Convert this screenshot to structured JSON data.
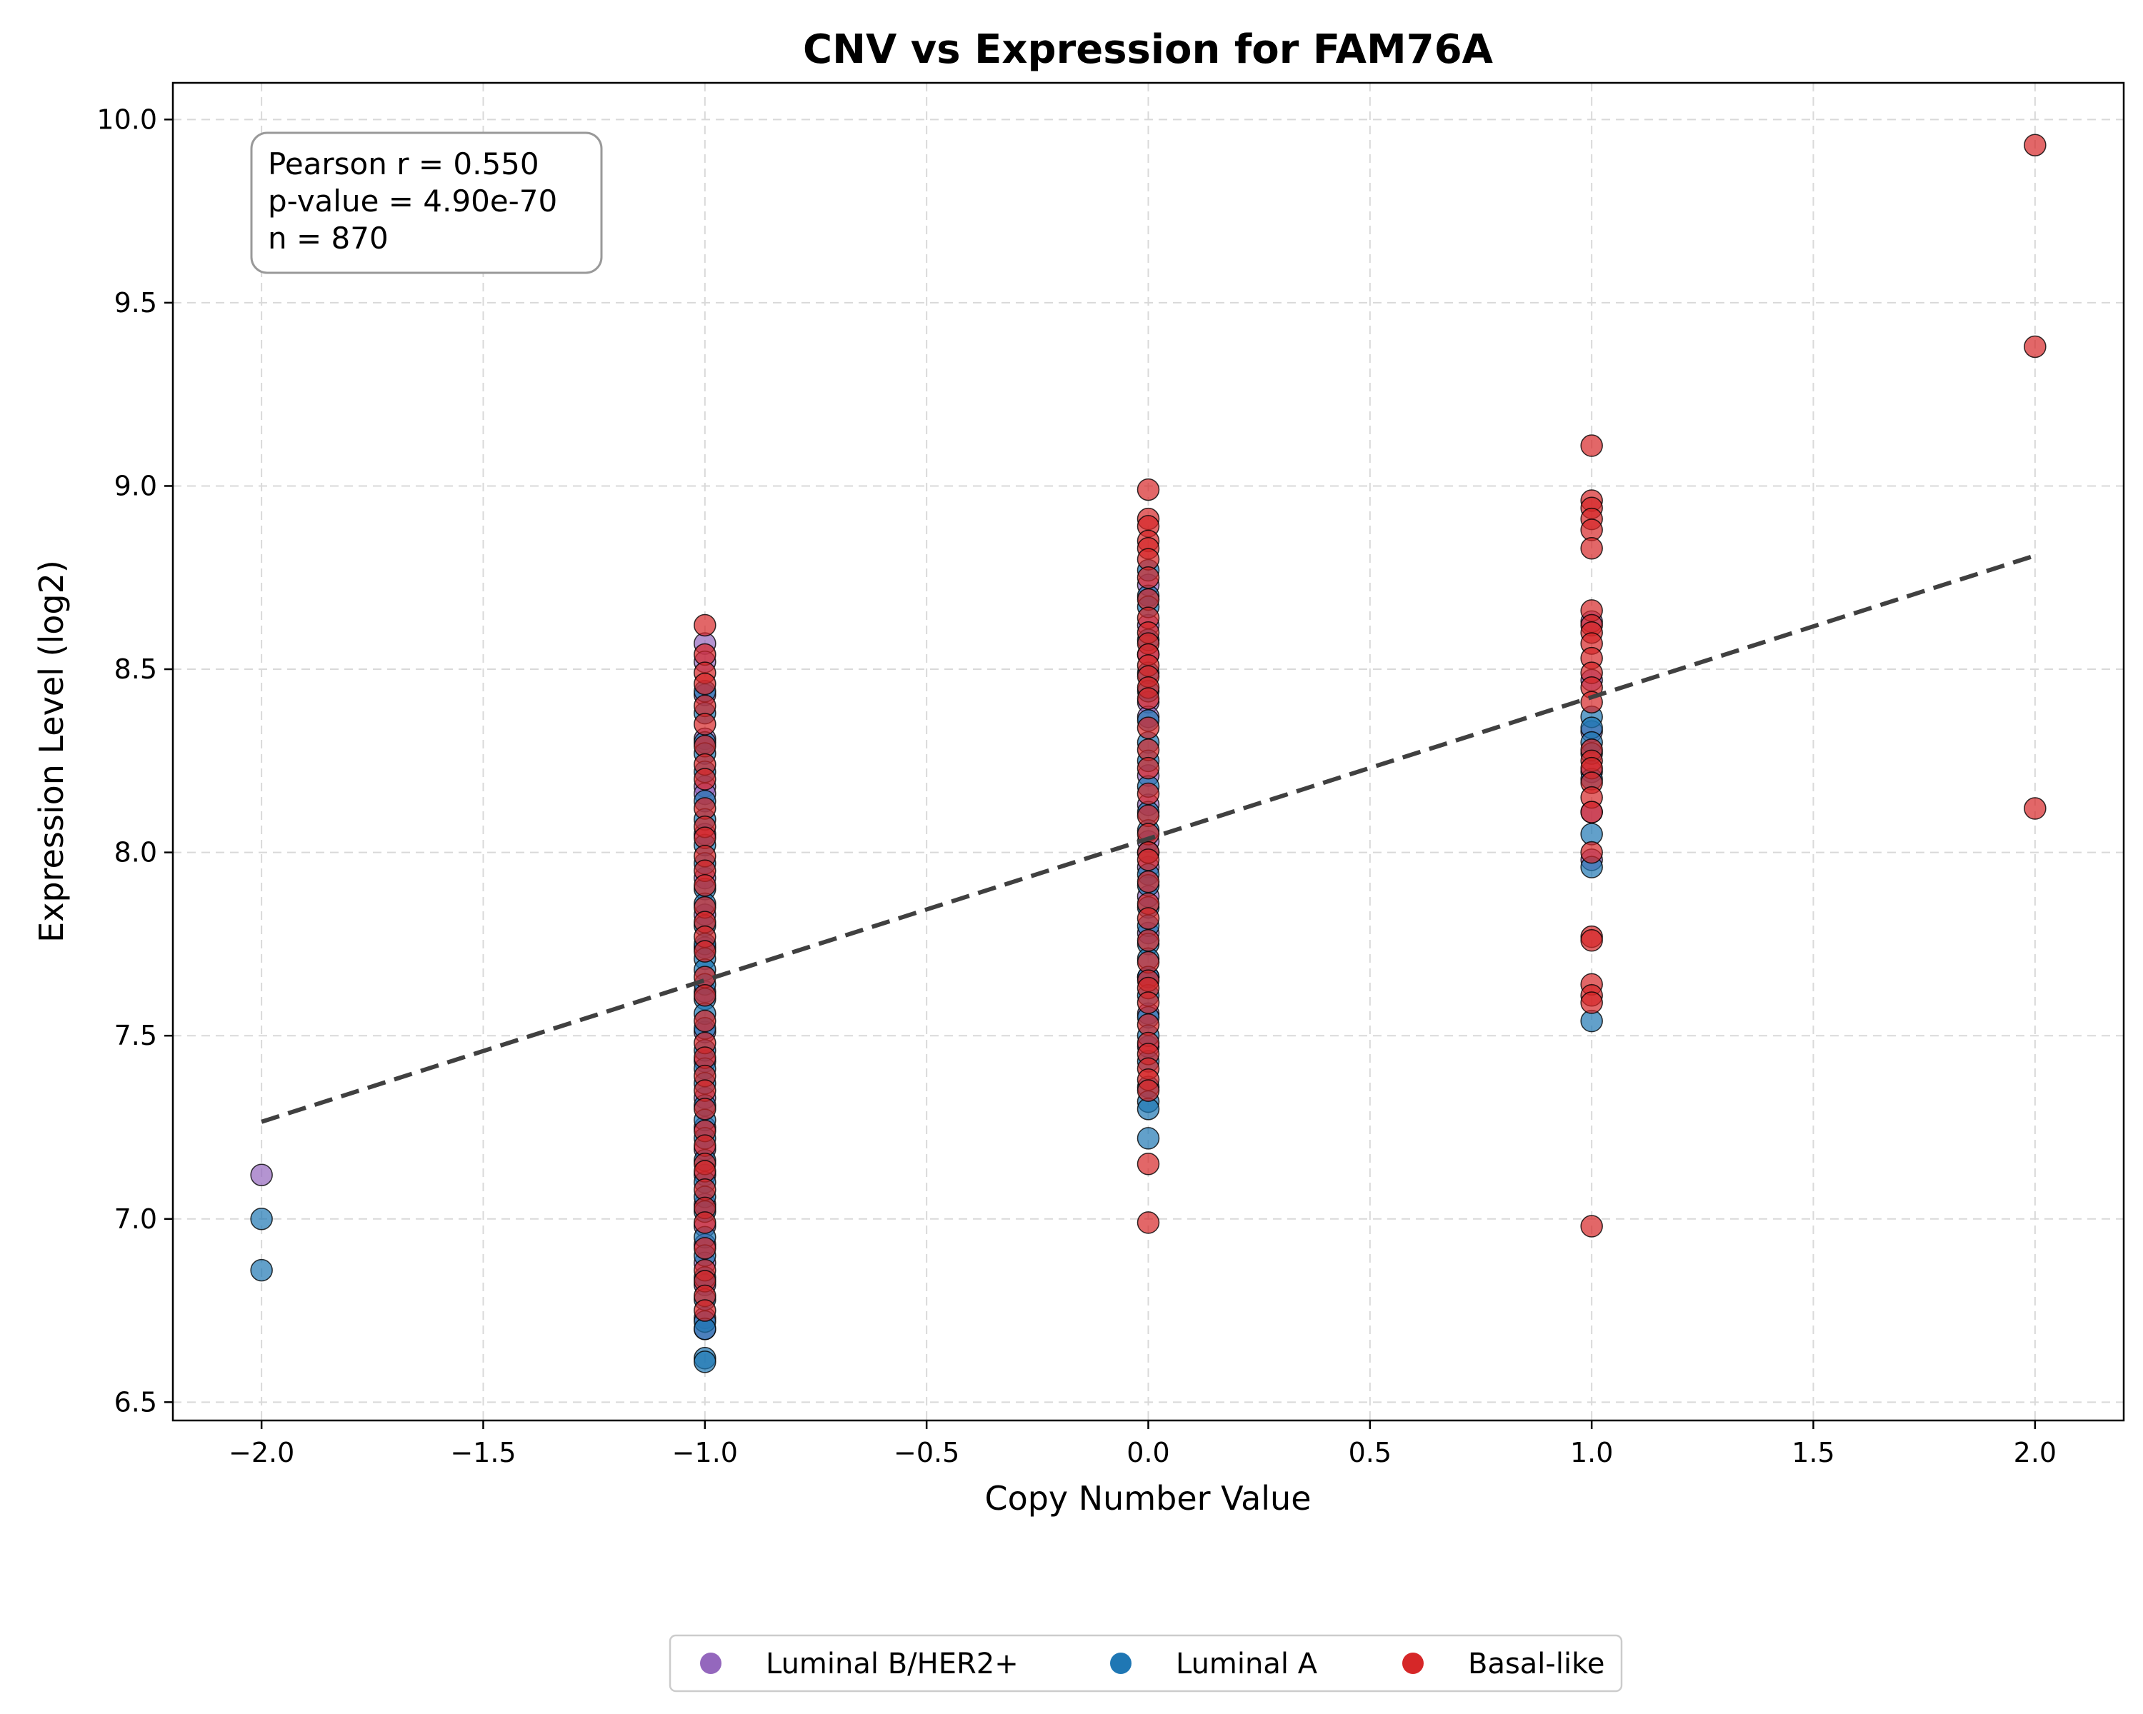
{
  "chart_data": {
    "type": "scatter",
    "title": "CNV vs Expression for FAM76A",
    "xlabel": "Copy Number Value",
    "ylabel": "Expression Level (log2)",
    "xlim": [
      -2.2,
      2.2
    ],
    "ylim": [
      6.45,
      10.1
    ],
    "xticks": [
      -2.0,
      -1.5,
      -1.0,
      -0.5,
      0.0,
      0.5,
      1.0,
      1.5,
      2.0
    ],
    "xtick_labels": [
      "−2.0",
      "−1.5",
      "−1.0",
      "−0.5",
      "0.0",
      "0.5",
      "1.0",
      "1.5",
      "2.0"
    ],
    "yticks": [
      6.5,
      7.0,
      7.5,
      8.0,
      8.5,
      9.0,
      9.5,
      10.0
    ],
    "ytick_labels": [
      "6.5",
      "7.0",
      "7.5",
      "8.0",
      "8.5",
      "9.0",
      "9.5",
      "10.0"
    ],
    "grid": true,
    "legend_position": "bottom-center",
    "stats": {
      "line1": "Pearson r = 0.550",
      "line2": "p-value = 4.90e-70",
      "line3": "n = 870"
    },
    "trend_line": {
      "x": [
        -2.0,
        2.0
      ],
      "y": [
        7.265,
        8.81
      ],
      "color": "#404040",
      "style": "dashed"
    },
    "series": [
      {
        "name": "Luminal B/HER2+",
        "color": "#9467bd",
        "points": [
          [
            -2,
            7.12
          ],
          [
            -1,
            8.57
          ],
          [
            -1,
            8.52
          ],
          [
            -1,
            8.43
          ],
          [
            -1,
            8.31
          ],
          [
            -1,
            8.18
          ],
          [
            -1,
            8.16
          ],
          [
            -1,
            8.05
          ],
          [
            -1,
            7.93
          ],
          [
            -1,
            7.83
          ],
          [
            -1,
            7.74
          ],
          [
            -1,
            7.62
          ],
          [
            -1,
            7.51
          ],
          [
            -1,
            7.43
          ],
          [
            -1,
            7.33
          ],
          [
            -1,
            7.25
          ],
          [
            -1,
            7.19
          ],
          [
            -1,
            7.12
          ],
          [
            -1,
            7.04
          ],
          [
            -1,
            6.98
          ],
          [
            -1,
            6.93
          ],
          [
            -1,
            6.88
          ],
          [
            -1,
            6.82
          ],
          [
            -1,
            6.73
          ],
          [
            -1,
            6.7
          ],
          [
            0,
            8.73
          ],
          [
            0,
            8.62
          ],
          [
            0,
            8.54
          ],
          [
            0,
            8.41
          ],
          [
            0,
            8.37
          ],
          [
            0,
            8.21
          ],
          [
            0,
            8.13
          ],
          [
            0,
            8.03
          ],
          [
            0,
            7.96
          ],
          [
            0,
            7.88
          ],
          [
            0,
            7.78
          ],
          [
            0,
            7.66
          ],
          [
            0,
            7.56
          ],
          [
            0,
            7.47
          ],
          [
            1,
            8.63
          ],
          [
            1,
            8.47
          ],
          [
            1,
            8.33
          ],
          [
            1,
            8.22
          ],
          [
            1,
            8.11
          ],
          [
            1,
            7.98
          ]
        ]
      },
      {
        "name": "Luminal A",
        "color": "#1f77b4",
        "points": [
          [
            -2,
            7.0
          ],
          [
            -2,
            6.86
          ],
          [
            -1,
            8.44
          ],
          [
            -1,
            8.38
          ],
          [
            -1,
            8.3
          ],
          [
            -1,
            8.27
          ],
          [
            -1,
            8.22
          ],
          [
            -1,
            8.14
          ],
          [
            -1,
            8.09
          ],
          [
            -1,
            8.02
          ],
          [
            -1,
            7.97
          ],
          [
            -1,
            7.9
          ],
          [
            -1,
            7.86
          ],
          [
            -1,
            7.8
          ],
          [
            -1,
            7.75
          ],
          [
            -1,
            7.71
          ],
          [
            -1,
            7.68
          ],
          [
            -1,
            7.64
          ],
          [
            -1,
            7.6
          ],
          [
            -1,
            7.56
          ],
          [
            -1,
            7.52
          ],
          [
            -1,
            7.46
          ],
          [
            -1,
            7.41
          ],
          [
            -1,
            7.37
          ],
          [
            -1,
            7.31
          ],
          [
            -1,
            7.27
          ],
          [
            -1,
            7.22
          ],
          [
            -1,
            7.16
          ],
          [
            -1,
            7.1
          ],
          [
            -1,
            7.06
          ],
          [
            -1,
            7.02
          ],
          [
            -1,
            6.95
          ],
          [
            -1,
            6.9
          ],
          [
            -1,
            6.84
          ],
          [
            -1,
            6.78
          ],
          [
            -1,
            6.72
          ],
          [
            -1,
            6.7
          ],
          [
            -1,
            6.62
          ],
          [
            -1,
            6.61
          ],
          [
            0,
            8.77
          ],
          [
            0,
            8.7
          ],
          [
            0,
            8.67
          ],
          [
            0,
            8.58
          ],
          [
            0,
            8.49
          ],
          [
            0,
            8.44
          ],
          [
            0,
            8.36
          ],
          [
            0,
            8.3
          ],
          [
            0,
            8.25
          ],
          [
            0,
            8.18
          ],
          [
            0,
            8.11
          ],
          [
            0,
            8.06
          ],
          [
            0,
            8.0
          ],
          [
            0,
            7.94
          ],
          [
            0,
            7.91
          ],
          [
            0,
            7.85
          ],
          [
            0,
            7.8
          ],
          [
            0,
            7.75
          ],
          [
            0,
            7.71
          ],
          [
            0,
            7.66
          ],
          [
            0,
            7.61
          ],
          [
            0,
            7.55
          ],
          [
            0,
            7.5
          ],
          [
            0,
            7.43
          ],
          [
            0,
            7.36
          ],
          [
            0,
            7.32
          ],
          [
            0,
            7.3
          ],
          [
            0,
            7.22
          ],
          [
            1,
            8.37
          ],
          [
            1,
            8.34
          ],
          [
            1,
            8.3
          ],
          [
            1,
            8.27
          ],
          [
            1,
            8.2
          ],
          [
            1,
            8.05
          ],
          [
            1,
            7.96
          ],
          [
            1,
            7.54
          ]
        ]
      },
      {
        "name": "Basal-like",
        "color": "#d62728",
        "points": [
          [
            -1,
            8.62
          ],
          [
            -1,
            8.54
          ],
          [
            -1,
            8.49
          ],
          [
            -1,
            8.46
          ],
          [
            -1,
            8.4
          ],
          [
            -1,
            8.35
          ],
          [
            -1,
            8.29
          ],
          [
            -1,
            8.24
          ],
          [
            -1,
            8.2
          ],
          [
            -1,
            8.12
          ],
          [
            -1,
            8.07
          ],
          [
            -1,
            8.04
          ],
          [
            -1,
            7.99
          ],
          [
            -1,
            7.95
          ],
          [
            -1,
            7.91
          ],
          [
            -1,
            7.85
          ],
          [
            -1,
            7.81
          ],
          [
            -1,
            7.77
          ],
          [
            -1,
            7.73
          ],
          [
            -1,
            7.66
          ],
          [
            -1,
            7.61
          ],
          [
            -1,
            7.54
          ],
          [
            -1,
            7.48
          ],
          [
            -1,
            7.44
          ],
          [
            -1,
            7.39
          ],
          [
            -1,
            7.35
          ],
          [
            -1,
            7.3
          ],
          [
            -1,
            7.24
          ],
          [
            -1,
            7.2
          ],
          [
            -1,
            7.15
          ],
          [
            -1,
            7.13
          ],
          [
            -1,
            7.08
          ],
          [
            -1,
            7.03
          ],
          [
            -1,
            6.99
          ],
          [
            -1,
            6.92
          ],
          [
            -1,
            6.86
          ],
          [
            -1,
            6.83
          ],
          [
            -1,
            6.79
          ],
          [
            -1,
            6.75
          ],
          [
            0,
            8.99
          ],
          [
            0,
            8.91
          ],
          [
            0,
            8.89
          ],
          [
            0,
            8.85
          ],
          [
            0,
            8.83
          ],
          [
            0,
            8.8
          ],
          [
            0,
            8.75
          ],
          [
            0,
            8.69
          ],
          [
            0,
            8.64
          ],
          [
            0,
            8.6
          ],
          [
            0,
            8.57
          ],
          [
            0,
            8.54
          ],
          [
            0,
            8.51
          ],
          [
            0,
            8.48
          ],
          [
            0,
            8.45
          ],
          [
            0,
            8.42
          ],
          [
            0,
            8.34
          ],
          [
            0,
            8.28
          ],
          [
            0,
            8.23
          ],
          [
            0,
            8.16
          ],
          [
            0,
            8.1
          ],
          [
            0,
            8.05
          ],
          [
            0,
            8.0
          ],
          [
            0,
            7.98
          ],
          [
            0,
            7.92
          ],
          [
            0,
            7.86
          ],
          [
            0,
            7.82
          ],
          [
            0,
            7.76
          ],
          [
            0,
            7.7
          ],
          [
            0,
            7.65
          ],
          [
            0,
            7.63
          ],
          [
            0,
            7.59
          ],
          [
            0,
            7.53
          ],
          [
            0,
            7.48
          ],
          [
            0,
            7.45
          ],
          [
            0,
            7.41
          ],
          [
            0,
            7.38
          ],
          [
            0,
            7.35
          ],
          [
            0,
            7.15
          ],
          [
            0,
            6.99
          ],
          [
            1,
            9.11
          ],
          [
            1,
            8.96
          ],
          [
            1,
            8.94
          ],
          [
            1,
            8.91
          ],
          [
            1,
            8.88
          ],
          [
            1,
            8.83
          ],
          [
            1,
            8.66
          ],
          [
            1,
            8.62
          ],
          [
            1,
            8.6
          ],
          [
            1,
            8.57
          ],
          [
            1,
            8.53
          ],
          [
            1,
            8.49
          ],
          [
            1,
            8.45
          ],
          [
            1,
            8.41
          ],
          [
            1,
            8.28
          ],
          [
            1,
            8.25
          ],
          [
            1,
            8.23
          ],
          [
            1,
            8.19
          ],
          [
            1,
            8.15
          ],
          [
            1,
            8.11
          ],
          [
            1,
            8.0
          ],
          [
            1,
            7.77
          ],
          [
            1,
            7.76
          ],
          [
            1,
            7.64
          ],
          [
            1,
            7.61
          ],
          [
            1,
            7.59
          ],
          [
            1,
            6.98
          ],
          [
            2,
            9.93
          ],
          [
            2,
            9.38
          ],
          [
            2,
            8.12
          ]
        ]
      }
    ]
  }
}
